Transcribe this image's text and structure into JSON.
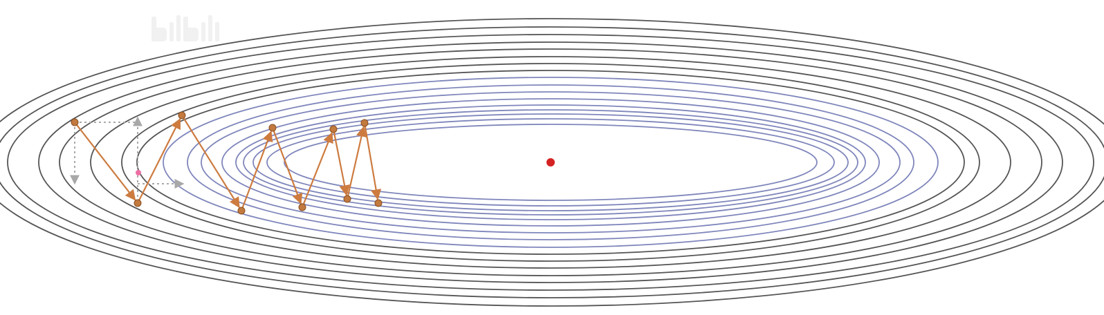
{
  "colors": {
    "outer_contour": "#555555",
    "inner_contour": "#7f86bb",
    "path": "#cd7b3f",
    "point_fill": "#c27a3f",
    "point_stroke": "#8a4f22",
    "minimum": "#d42222",
    "decomposition": "#a8a8a8",
    "midpoint": "#ec6fa3",
    "watermark": "#999999"
  },
  "logo": {
    "watermark_icon": "bilibili-logo",
    "text": "bilibili"
  },
  "diagram": {
    "contour_count": 17,
    "contour_style": "nested-ellipses",
    "optimization_path_steps": 10,
    "shows_decomposition": true,
    "minimum_marker": "red-dot"
  }
}
